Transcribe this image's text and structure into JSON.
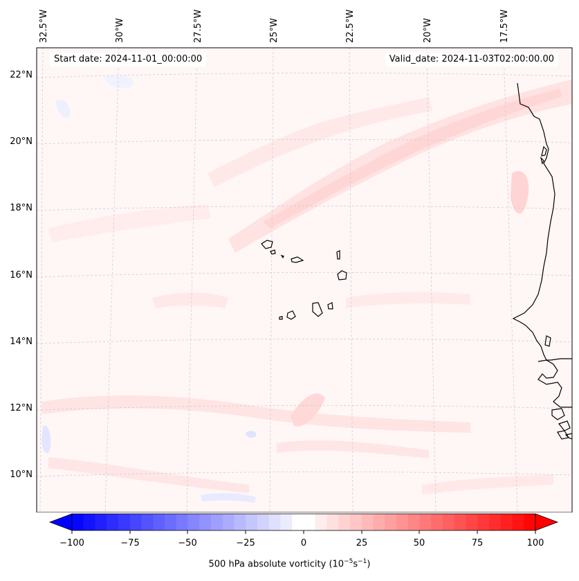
{
  "header": {
    "start_date": "Start date: 2024-11-01_00:00:00",
    "valid_date": "Valid_date: 2024-11-03T02:00:00.00"
  },
  "map": {
    "lon_labels": [
      "32.5°W",
      "30°W",
      "27.5°W",
      "25°W",
      "22.5°W",
      "20°W",
      "17.5°W"
    ],
    "lat_labels": [
      "22°N",
      "20°N",
      "18°N",
      "16°N",
      "14°N",
      "12°N",
      "10°N"
    ],
    "field_colors": {
      "positive": "#ffdede",
      "weak": "#fff5f5",
      "negative": "#eef0ff"
    }
  },
  "colorbar": {
    "ticks": [
      "−100",
      "−75",
      "−50",
      "−25",
      "0",
      "25",
      "50",
      "75",
      "100"
    ],
    "label_text": "500 hPa absolute vorticity (10",
    "label_exp1": "−5",
    "label_mid": "s",
    "label_exp2": "−1",
    "label_end": ")",
    "min_color": "#0000ff",
    "mid_color": "#ffffff",
    "max_color": "#ff0000"
  }
}
